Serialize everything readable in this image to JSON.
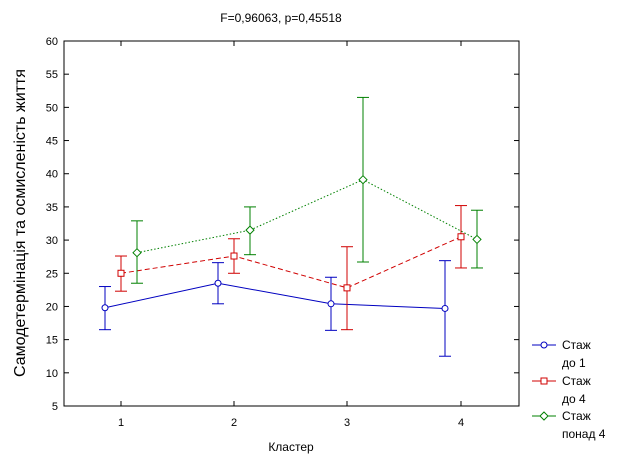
{
  "chart_data": {
    "type": "line",
    "title": "F=0,96063, p=0,45518",
    "xlabel": "Кластер",
    "ylabel": "Самодетермінація та осмисленість життя",
    "categories": [
      "1",
      "2",
      "3",
      "4"
    ],
    "ylim": [
      5,
      60
    ],
    "yticks": [
      "5",
      "10",
      "15",
      "20",
      "25",
      "30",
      "35",
      "40",
      "45",
      "50",
      "55",
      "60"
    ],
    "grid": false,
    "legend_position": "bottom-right",
    "series": [
      {
        "name": "Стаж до 1",
        "legend_lines": [
          "Стаж",
          "до 1"
        ],
        "color": "#0000c0",
        "marker": "circle",
        "line_style": "solid",
        "values": [
          19.8,
          23.5,
          20.4,
          19.7
        ],
        "err_low": [
          16.5,
          20.4,
          16.4,
          12.5
        ],
        "err_high": [
          23.0,
          26.6,
          24.4,
          26.9
        ]
      },
      {
        "name": "Стаж до 4",
        "legend_lines": [
          "Стаж",
          "до 4"
        ],
        "color": "#d00000",
        "marker": "square",
        "line_style": "dashed",
        "values": [
          25.0,
          27.6,
          22.8,
          30.5
        ],
        "err_low": [
          22.3,
          25.0,
          16.5,
          25.8
        ],
        "err_high": [
          27.6,
          30.2,
          29.0,
          35.2
        ]
      },
      {
        "name": "Стаж понад 4",
        "legend_lines": [
          "Стаж",
          "понад 4"
        ],
        "color": "#008000",
        "marker": "diamond",
        "line_style": "dotted",
        "values": [
          28.1,
          31.5,
          39.1,
          30.1
        ],
        "err_low": [
          23.5,
          27.8,
          26.7,
          25.8
        ],
        "err_high": [
          32.9,
          35.0,
          51.5,
          34.5
        ]
      }
    ]
  }
}
